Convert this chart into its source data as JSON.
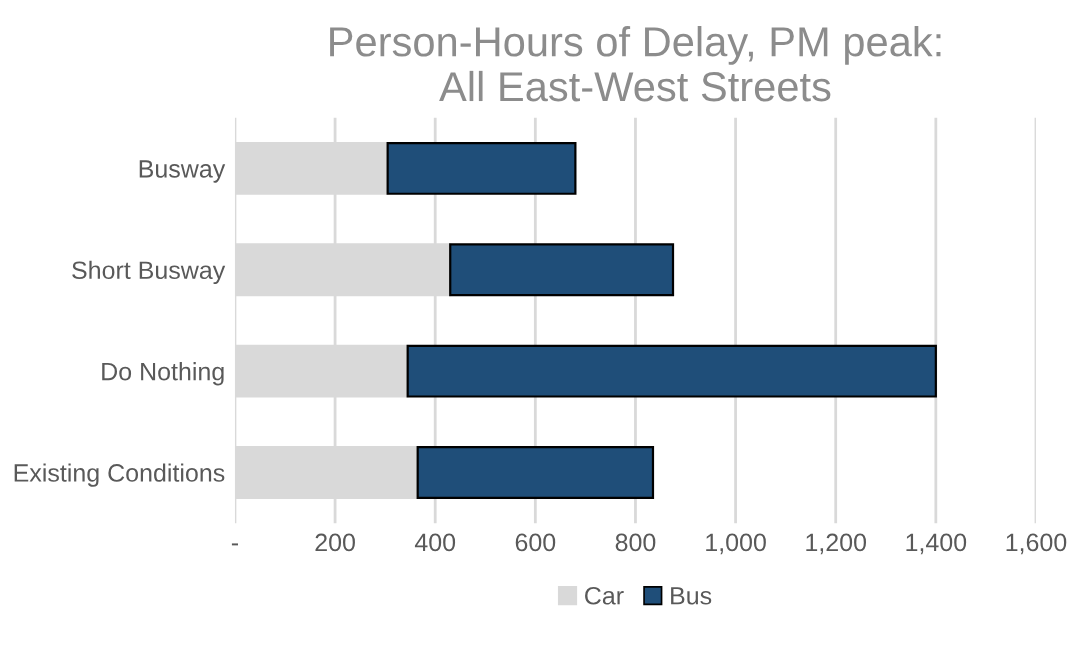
{
  "chart_data": {
    "type": "bar",
    "orientation": "horizontal",
    "stacked": true,
    "title": "Person-Hours of Delay, PM peak:\nAll East-West Streets",
    "categories": [
      "Busway",
      "Short Busway",
      "Do Nothing",
      "Existing Conditions"
    ],
    "series": [
      {
        "name": "Car",
        "color": "#d9d9d9",
        "values": [
          305,
          430,
          345,
          365
        ]
      },
      {
        "name": "Bus",
        "color": "#1f4e79",
        "values": [
          375,
          445,
          1055,
          470
        ]
      }
    ],
    "xlim": [
      0,
      1600
    ],
    "xticks": [
      {
        "value": 0,
        "label": "-"
      },
      200,
      400,
      600,
      {
        "value": 800,
        "label": "800"
      },
      {
        "value": 1000,
        "label": "1,000"
      },
      {
        "value": 1200,
        "label": "1,200"
      },
      {
        "value": 1400,
        "label": "1,400"
      },
      {
        "value": 1600,
        "label": "1,600"
      }
    ],
    "grid": "x",
    "legend": "bottom"
  }
}
